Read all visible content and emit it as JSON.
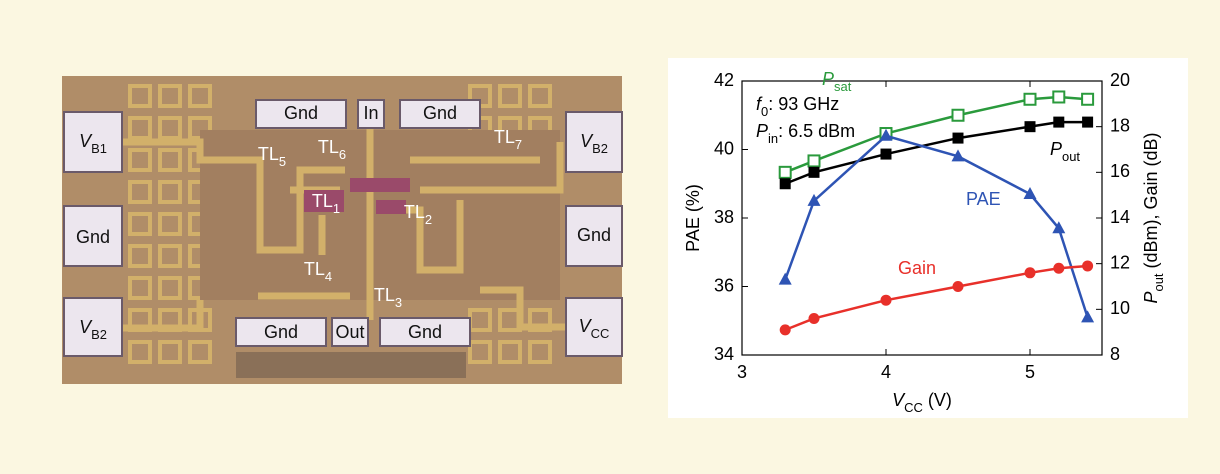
{
  "die_photo": {
    "labels": [
      {
        "text": "V",
        "sub": "B1"
      },
      {
        "text": "Gnd"
      },
      {
        "text": "V",
        "sub": "B2"
      },
      {
        "text": "Gnd"
      },
      {
        "text": "In"
      },
      {
        "text": "Gnd"
      },
      {
        "text": "V",
        "sub": "B2"
      },
      {
        "text": "Gnd"
      },
      {
        "text": "V",
        "sub": "CC"
      },
      {
        "text": "Gnd"
      },
      {
        "text": "Out"
      },
      {
        "text": "Gnd"
      },
      {
        "text": "TL",
        "sub": "5"
      },
      {
        "text": "TL",
        "sub": "6"
      },
      {
        "text": "TL",
        "sub": "7"
      },
      {
        "text": "TL",
        "sub": "1"
      },
      {
        "text": "TL",
        "sub": "2"
      },
      {
        "text": "TL",
        "sub": "4"
      },
      {
        "text": "TL",
        "sub": "3"
      }
    ]
  },
  "chart_data": {
    "type": "line",
    "x": [
      3.3,
      3.5,
      4,
      4.5,
      5,
      5.2,
      5.4
    ],
    "xlim": [
      3,
      5.5
    ],
    "xticks": [
      3,
      4,
      5
    ],
    "ylim": [
      34,
      42
    ],
    "yticks": [
      34,
      36,
      38,
      40,
      42
    ],
    "y2lim": [
      8,
      20
    ],
    "y2ticks": [
      8,
      10,
      12,
      14,
      16,
      18,
      20
    ],
    "xlabel": {
      "text": "V",
      "sub": "CC",
      "rest": " (V)"
    },
    "ylabel": "PAE (%)",
    "y2label": {
      "text": "P",
      "sub": "out",
      "rest": " (dBm), Gain (dB)"
    },
    "annotations": [
      {
        "text": "f",
        "sub": "0",
        "rest": ": 93 GHz"
      },
      {
        "text": "P",
        "sub": "in",
        "rest": ": 6.5 dBm"
      }
    ],
    "series": [
      {
        "name": "P",
        "name_sub": "sat",
        "color": "#2a9a3c",
        "marker": "square-open",
        "axis": "y2",
        "values": [
          16.0,
          16.5,
          17.7,
          18.5,
          19.2,
          19.3,
          19.2
        ]
      },
      {
        "name": "P",
        "name_sub": "out",
        "color": "#000000",
        "marker": "square",
        "axis": "y2",
        "values": [
          15.5,
          16.0,
          16.8,
          17.5,
          18.0,
          18.2,
          18.2
        ]
      },
      {
        "name": "PAE",
        "color": "#2e54b4",
        "marker": "triangle",
        "values": [
          36.2,
          38.5,
          40.4,
          39.8,
          38.7,
          37.7,
          35.1
        ]
      },
      {
        "name": "Gain",
        "color": "#e8302a",
        "marker": "circle",
        "axis": "y2",
        "values": [
          9.1,
          9.6,
          10.4,
          11.0,
          11.6,
          11.8,
          11.9
        ]
      }
    ]
  }
}
